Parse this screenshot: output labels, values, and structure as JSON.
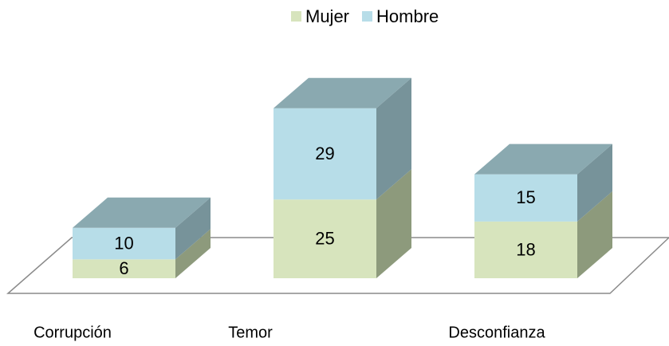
{
  "chart_data": {
    "type": "bar3d_stacked",
    "categories": [
      "Corrupción",
      "Temor",
      "Desconfianza"
    ],
    "series": [
      {
        "name": "Mujer",
        "color": "#d7e4bd",
        "values": [
          6,
          25,
          18
        ]
      },
      {
        "name": "Hombre",
        "color": "#b7dde8",
        "values": [
          10,
          29,
          15
        ]
      }
    ],
    "legend": "top"
  }
}
